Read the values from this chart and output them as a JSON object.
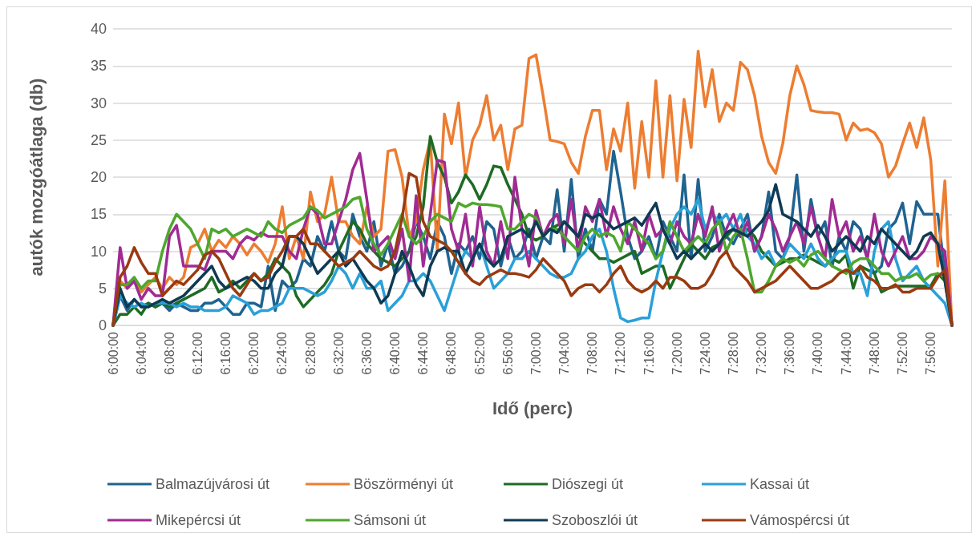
{
  "chart_data": {
    "type": "line",
    "xlabel": "Idő (perc)",
    "ylabel": "autók mozgóátlaga (db)",
    "categories": [
      "6:00:00",
      null,
      null,
      null,
      "6:04:00",
      null,
      null,
      null,
      "6:08:00",
      null,
      null,
      null,
      "6:12:00",
      null,
      null,
      null,
      "6:16:00",
      null,
      null,
      null,
      "6:20:00",
      null,
      null,
      null,
      "6:24:00",
      null,
      null,
      null,
      "6:28:00",
      null,
      null,
      null,
      "6:32:00",
      null,
      null,
      null,
      "6:36:00",
      null,
      null,
      null,
      "6:40:00",
      null,
      null,
      null,
      "6:44:00",
      null,
      null,
      null,
      "6:48:00",
      null,
      null,
      null,
      "6:52:00",
      null,
      null,
      null,
      "6:56:00",
      null,
      null,
      null,
      "7:00:00",
      null,
      null,
      null,
      "7:04:00",
      null,
      null,
      null,
      "7:08:00",
      null,
      null,
      null,
      "7:12:00",
      null,
      null,
      null,
      "7:16:00",
      null,
      null,
      null,
      "7:20:00",
      null,
      null,
      null,
      "7:24:00",
      null,
      null,
      null,
      "7:28:00",
      null,
      null,
      null,
      "7:32:00",
      null,
      null,
      null,
      "7:36:00",
      null,
      null,
      null,
      "7:40:00",
      null,
      null,
      null,
      "7:44:00",
      null,
      null,
      null,
      "7:48:00",
      null,
      null,
      null,
      "7:52:00",
      null,
      null,
      null,
      "7:56:00",
      null,
      null,
      null
    ],
    "ylim": [
      0,
      40
    ],
    "yticks": [
      0,
      5,
      10,
      15,
      20,
      25,
      30,
      35,
      40
    ],
    "grid": "y",
    "legend": "bottom",
    "marker": "none",
    "line_style": "solid",
    "series": [
      {
        "name": "Balmazújvárosi út",
        "color": "#1f6391",
        "values": [
          0,
          4,
          2,
          3.5,
          2.5,
          3,
          2.5,
          3,
          2,
          3,
          2.5,
          2,
          2,
          3,
          3,
          3.5,
          2.5,
          1.5,
          1.5,
          3,
          3,
          2.5,
          8,
          2,
          6,
          5,
          6,
          9,
          8,
          12,
          10,
          14,
          10,
          9,
          15,
          12,
          10,
          14,
          8,
          11,
          7,
          8,
          10,
          14,
          12,
          9,
          14,
          12,
          7,
          11,
          10,
          12,
          9,
          14,
          13,
          8,
          12,
          9,
          10,
          13,
          9,
          12,
          11,
          18.3,
          10,
          19.7,
          9,
          13,
          10,
          17,
          15,
          23.5,
          18,
          12,
          9,
          10,
          12,
          9,
          14,
          12,
          10,
          20.3,
          9,
          19.7,
          10,
          12,
          15,
          12,
          11,
          13,
          15,
          10,
          12,
          18,
          10,
          9,
          12,
          20.3,
          10,
          17,
          12,
          14,
          8,
          12,
          10,
          14,
          13,
          9,
          7,
          8,
          13,
          14,
          16.5,
          11,
          16.7,
          15,
          15,
          15,
          7,
          0
        ]
      },
      {
        "name": "Böszörményi út",
        "color": "#ed7d31",
        "values": [
          0,
          6,
          5,
          6,
          4.5,
          5.5,
          6.5,
          5,
          6.5,
          5.5,
          6.5,
          10.5,
          11,
          13,
          10,
          11.5,
          10.5,
          12,
          11,
          9.5,
          11,
          10,
          8.5,
          11,
          16,
          9,
          12,
          9,
          18,
          14,
          15,
          20,
          14,
          14,
          12,
          11,
          16,
          12,
          13,
          23.5,
          23.7,
          20,
          12,
          14,
          21,
          25,
          10,
          28.5,
          24.5,
          30,
          20,
          25,
          27,
          31,
          25,
          27,
          21,
          26.5,
          27,
          36,
          36.5,
          31,
          25,
          24.8,
          24.5,
          22,
          20.5,
          25.5,
          29,
          29,
          21,
          26.5,
          23.5,
          30,
          18.5,
          27.5,
          20,
          33,
          20,
          31,
          19.5,
          30.5,
          24,
          37,
          29.5,
          34.5,
          27.5,
          30,
          29,
          35.5,
          34.5,
          31,
          25.5,
          22,
          20.5,
          24.5,
          31,
          35,
          32.5,
          29,
          28.8,
          28.7,
          28.7,
          28.5,
          25,
          27.3,
          26.3,
          26.5,
          26,
          24.5,
          20,
          21.5,
          24.5,
          27.3,
          24,
          28,
          22.3,
          8,
          19.5,
          0
        ]
      },
      {
        "name": "Diószegi út",
        "color": "#1e6b24",
        "values": [
          0,
          1.5,
          1.5,
          2.5,
          1.5,
          3,
          2.5,
          3,
          2.5,
          3,
          3.5,
          4,
          4.5,
          5,
          6.5,
          4.5,
          5,
          6,
          5,
          6,
          7,
          6,
          7,
          9,
          8,
          7,
          4,
          2.5,
          3.5,
          4.5,
          5.5,
          7,
          10,
          12,
          14,
          13,
          11,
          10,
          9,
          8.5,
          8,
          9,
          10,
          12,
          16,
          25.5,
          22,
          20,
          16.5,
          18,
          20.3,
          19,
          17,
          19,
          21.5,
          21.3,
          19,
          17,
          15,
          12,
          11.5,
          12,
          13,
          13.5,
          14,
          13,
          12,
          11,
          10,
          9,
          9,
          8.5,
          9,
          9.5,
          10,
          7,
          7.5,
          8,
          8,
          5,
          7,
          9,
          11,
          10,
          9,
          10.5,
          11,
          12,
          13,
          12,
          13,
          12,
          10,
          9,
          8,
          8.5,
          9,
          9,
          9.5,
          9,
          8.5,
          8,
          9,
          8.5,
          9.5,
          5,
          8,
          7.5,
          7,
          4.5,
          5,
          5.3,
          5.3,
          5.3,
          5.3,
          5.3,
          5.3,
          7,
          6,
          0
        ]
      },
      {
        "name": "Kassai út",
        "color": "#2aa0d8",
        "values": [
          0,
          4,
          3,
          2.5,
          3,
          2.5,
          3,
          3,
          3,
          2.5,
          3,
          2.5,
          2.5,
          2,
          2,
          2,
          2.5,
          4,
          3.5,
          3,
          1.5,
          2,
          2,
          2.5,
          3,
          5,
          5,
          5,
          4.5,
          4,
          4.5,
          6,
          8,
          7,
          5,
          7,
          5,
          5,
          6,
          2,
          3,
          4,
          6,
          6,
          7,
          6,
          4,
          2,
          5,
          8,
          10,
          9,
          11,
          8,
          5,
          6,
          7,
          9,
          9,
          10,
          9,
          8,
          7,
          6.5,
          6.5,
          7,
          9,
          10,
          12,
          13,
          10,
          5,
          1,
          0.5,
          0.7,
          1,
          1,
          6,
          10,
          13,
          15,
          16,
          15,
          17,
          13,
          15,
          14,
          15,
          13,
          15,
          12,
          11,
          9,
          10,
          8,
          9,
          11,
          10,
          9,
          11,
          9,
          8,
          9,
          10,
          10,
          7,
          7,
          4,
          10,
          13,
          14,
          9,
          6,
          7,
          8,
          6,
          5,
          4,
          3,
          0
        ]
      },
      {
        "name": "Mikepércsi út",
        "color": "#a02b93",
        "values": [
          0,
          10.5,
          5,
          6,
          3.5,
          5,
          4,
          4,
          12,
          13.5,
          8,
          8,
          8,
          7.5,
          10,
          10,
          10,
          9,
          11,
          12,
          11.5,
          12.5,
          12,
          12,
          12,
          10,
          9,
          13,
          16,
          15,
          11,
          11,
          14,
          17,
          21,
          23.2,
          17,
          10,
          11,
          12,
          9,
          13,
          6,
          17.5,
          8,
          15,
          22.3,
          22,
          13,
          10,
          15,
          8,
          16,
          10,
          8,
          14,
          9,
          20,
          13,
          8,
          15.5,
          12,
          14,
          15,
          11,
          17,
          10,
          16,
          14,
          17,
          12,
          16,
          13,
          11,
          14,
          10,
          15,
          12,
          13,
          11,
          14,
          12,
          11,
          15,
          12,
          16,
          10,
          13,
          15,
          12,
          14,
          10,
          12,
          15,
          13,
          10,
          12,
          14,
          11,
          16,
          12,
          9,
          17,
          12,
          14,
          10,
          12,
          9,
          15,
          10,
          8,
          10,
          12,
          9,
          9,
          10,
          12,
          11,
          10,
          0
        ]
      },
      {
        "name": "Sámsoni út",
        "color": "#4ea72e",
        "values": [
          0,
          5.5,
          5.5,
          6.5,
          5,
          6,
          6,
          10,
          13,
          15,
          14,
          13,
          11,
          9,
          13,
          12.5,
          13,
          12,
          12.5,
          13,
          12.5,
          12,
          14,
          13,
          12.5,
          13.5,
          14,
          14.5,
          16,
          15.5,
          14.5,
          15,
          15.5,
          16,
          17,
          17.3,
          13,
          11,
          9.5,
          11,
          13,
          15,
          12,
          11,
          12,
          14,
          15,
          14.5,
          14,
          16.5,
          16,
          16.5,
          16.3,
          16.3,
          16.2,
          16,
          13,
          13,
          14,
          15,
          14.5,
          12,
          13,
          13,
          12,
          11,
          10,
          12,
          13,
          12,
          12.5,
          12,
          10,
          14,
          13,
          12,
          11,
          9,
          10,
          14,
          12,
          10,
          11,
          12,
          11,
          13,
          14,
          10,
          12,
          13,
          9,
          4.5,
          4.5,
          6,
          8,
          9,
          8.5,
          9,
          8,
          9.5,
          10,
          9,
          8,
          7.5,
          7,
          8.5,
          9,
          9,
          8,
          7,
          7,
          6,
          6.5,
          6.5,
          7,
          6,
          6.8,
          7,
          6.5,
          0
        ]
      },
      {
        "name": "Szoboszlói út",
        "color": "#0e3a54",
        "values": [
          0,
          5,
          2.5,
          3.5,
          2.5,
          2.5,
          3,
          3.5,
          3,
          3.5,
          4,
          5,
          6,
          7,
          8,
          6,
          5,
          5.5,
          6,
          6.5,
          6,
          5,
          5,
          7,
          8,
          12,
          12,
          11,
          9,
          7,
          8,
          9,
          10,
          8,
          9,
          7.5,
          6,
          5,
          3,
          4,
          7,
          10,
          8,
          5.5,
          4,
          8,
          10,
          10.5,
          10,
          10,
          7,
          9,
          11,
          9,
          8,
          9,
          12,
          12.5,
          13,
          12,
          14,
          12,
          13,
          12.5,
          14,
          13,
          12,
          15,
          14.5,
          15,
          14,
          13,
          13.5,
          14,
          14.5,
          13.5,
          15,
          16.5,
          13,
          11,
          9,
          10,
          9,
          10,
          11,
          10,
          11,
          12.5,
          13,
          12.5,
          12,
          13,
          14,
          15.5,
          19,
          15,
          14.5,
          14,
          13,
          12,
          13.5,
          12,
          10,
          11,
          12,
          11,
          10,
          12,
          11,
          13,
          12,
          11,
          10,
          9,
          10,
          12,
          12.5,
          11,
          6,
          0
        ]
      },
      {
        "name": "Vámospércsi út",
        "color": "#9a3a10",
        "values": [
          0,
          6.5,
          8,
          10.5,
          8.5,
          7,
          7,
          4,
          5,
          6,
          5.5,
          6.5,
          7.5,
          9.5,
          10,
          9,
          7,
          5,
          4,
          5.5,
          7,
          6,
          6.5,
          8.5,
          10,
          12,
          12,
          13,
          11,
          11,
          10,
          9,
          8,
          8.5,
          9,
          10,
          9,
          8,
          7.5,
          8,
          10,
          14.5,
          20.5,
          20,
          14,
          12,
          11.5,
          11,
          10,
          8.5,
          7,
          6,
          5.5,
          6.5,
          7,
          7.5,
          7,
          7,
          6.8,
          6.5,
          7.5,
          9,
          8,
          7,
          6,
          4,
          5,
          5.5,
          5.5,
          4.5,
          5.5,
          7,
          8,
          6,
          5,
          4.5,
          5,
          6,
          5,
          6.5,
          6.5,
          6,
          5,
          5,
          5.5,
          7,
          9,
          10,
          8,
          7,
          6,
          4.5,
          5,
          5.5,
          6,
          7,
          8,
          7,
          6,
          5,
          5,
          5.5,
          6,
          7,
          7.5,
          7,
          8,
          6.5,
          6,
          5,
          5,
          5.5,
          4.5,
          4.5,
          5,
          5,
          5,
          6.5,
          7.5,
          0
        ]
      }
    ]
  }
}
